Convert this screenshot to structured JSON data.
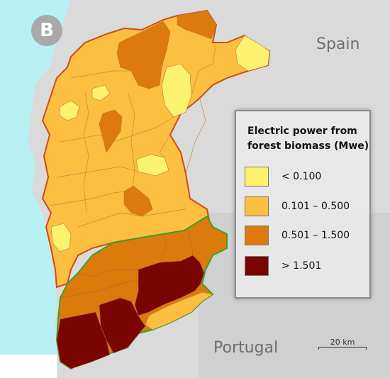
{
  "panel_label": "B",
  "regions": {
    "north": "Spain",
    "south": "Portugal"
  },
  "legend": {
    "title": "Electric power from forest biomass (Mwe)",
    "classes": [
      {
        "label": "< 0.100",
        "color": "#fdf26f"
      },
      {
        "label": "0.101 – 0.500",
        "color": "#fdbf40"
      },
      {
        "label": "0.501 – 1.500",
        "color": "#dd7a0c"
      },
      {
        "label": "> 1.501",
        "color": "#7a0402"
      }
    ]
  },
  "scale": {
    "label": "20 km"
  },
  "colors": {
    "sea": "#b9f0f3",
    "land_outside": "#dadada",
    "border_spain": "#d14a1b",
    "border_portugal": "#3aa12a",
    "municipality_line": "#b07a36"
  }
}
